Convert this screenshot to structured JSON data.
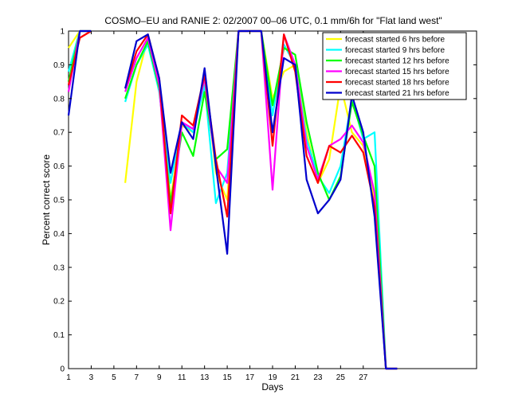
{
  "chart_data": {
    "type": "line",
    "title": "COSMO–EU and RANIE 2: 02/2007 00–06 UTC, 0.1 mm/6h for \"Flat land west\"",
    "xlabel": "Days",
    "ylabel": "Percent correct score",
    "xlim": [
      1,
      37
    ],
    "ylim": [
      0,
      1
    ],
    "xticks": [
      1,
      3,
      5,
      7,
      9,
      11,
      13,
      15,
      17,
      19,
      21,
      23,
      25,
      27
    ],
    "yticks": [
      0,
      0.1,
      0.2,
      0.3,
      0.4,
      0.5,
      0.6,
      0.7,
      0.8,
      0.9,
      1
    ],
    "grid": false,
    "legend_position": "top-right",
    "series": [
      {
        "name": "forecast started 6 hrs before",
        "color": "#ffff00",
        "points": [
          [
            1,
            0.95
          ],
          [
            2,
            1.0
          ],
          [
            3,
            1.0
          ],
          [
            6,
            0.55
          ],
          [
            7,
            0.85
          ],
          [
            8,
            0.98
          ],
          [
            9,
            0.85
          ],
          [
            10,
            0.5
          ],
          [
            11,
            0.72
          ],
          [
            12,
            0.7
          ],
          [
            13,
            0.88
          ],
          [
            14,
            0.58
          ],
          [
            15,
            0.5
          ],
          [
            16,
            1.0
          ],
          [
            17,
            1.0
          ],
          [
            18,
            1.0
          ],
          [
            19,
            0.8
          ],
          [
            20,
            0.88
          ],
          [
            21,
            0.9
          ],
          [
            22,
            0.7
          ],
          [
            23,
            0.55
          ],
          [
            24,
            0.62
          ],
          [
            25,
            0.84
          ],
          [
            26,
            0.7
          ],
          [
            27,
            0.66
          ],
          [
            28,
            0.5
          ],
          [
            29,
            0.0
          ],
          [
            30,
            0.0
          ]
        ]
      },
      {
        "name": "forecast started 9 hrs before",
        "color": "#00ffff",
        "points": [
          [
            1,
            0.88
          ],
          [
            2,
            1.0
          ],
          [
            3,
            1.0
          ],
          [
            6,
            0.79
          ],
          [
            7,
            0.9
          ],
          [
            8,
            0.96
          ],
          [
            9,
            0.82
          ],
          [
            10,
            0.55
          ],
          [
            11,
            0.73
          ],
          [
            12,
            0.7
          ],
          [
            13,
            0.84
          ],
          [
            14,
            0.49
          ],
          [
            15,
            0.58
          ],
          [
            16,
            1.0
          ],
          [
            17,
            1.0
          ],
          [
            18,
            1.0
          ],
          [
            19,
            0.75
          ],
          [
            20,
            0.96
          ],
          [
            21,
            0.9
          ],
          [
            22,
            0.68
          ],
          [
            23,
            0.57
          ],
          [
            24,
            0.52
          ],
          [
            25,
            0.6
          ],
          [
            26,
            0.8
          ],
          [
            27,
            0.68
          ],
          [
            28,
            0.7
          ],
          [
            29,
            0.0
          ],
          [
            30,
            0.0
          ]
        ]
      },
      {
        "name": "forecast started 12 hrs before",
        "color": "#00ff00",
        "points": [
          [
            1,
            0.85
          ],
          [
            2,
            1.0
          ],
          [
            3,
            1.0
          ],
          [
            6,
            0.8
          ],
          [
            7,
            0.9
          ],
          [
            8,
            0.97
          ],
          [
            9,
            0.83
          ],
          [
            10,
            0.49
          ],
          [
            11,
            0.7
          ],
          [
            12,
            0.63
          ],
          [
            13,
            0.82
          ],
          [
            14,
            0.62
          ],
          [
            15,
            0.65
          ],
          [
            16,
            1.0
          ],
          [
            17,
            1.0
          ],
          [
            18,
            1.0
          ],
          [
            19,
            0.78
          ],
          [
            20,
            0.95
          ],
          [
            21,
            0.93
          ],
          [
            22,
            0.73
          ],
          [
            23,
            0.58
          ],
          [
            24,
            0.5
          ],
          [
            25,
            0.57
          ],
          [
            26,
            0.79
          ],
          [
            27,
            0.69
          ],
          [
            28,
            0.6
          ],
          [
            29,
            0.0
          ],
          [
            30,
            0.0
          ]
        ]
      },
      {
        "name": "forecast started 15 hrs before",
        "color": "#ff00ff",
        "points": [
          [
            1,
            0.82
          ],
          [
            2,
            1.0
          ],
          [
            3,
            1.0
          ],
          [
            6,
            0.82
          ],
          [
            7,
            0.92
          ],
          [
            8,
            0.98
          ],
          [
            9,
            0.84
          ],
          [
            10,
            0.41
          ],
          [
            11,
            0.73
          ],
          [
            12,
            0.71
          ],
          [
            13,
            0.86
          ],
          [
            14,
            0.6
          ],
          [
            15,
            0.55
          ],
          [
            16,
            1.0
          ],
          [
            17,
            1.0
          ],
          [
            18,
            1.0
          ],
          [
            19,
            0.53
          ],
          [
            20,
            0.99
          ],
          [
            21,
            0.9
          ],
          [
            22,
            0.66
          ],
          [
            23,
            0.56
          ],
          [
            24,
            0.66
          ],
          [
            25,
            0.68
          ],
          [
            26,
            0.72
          ],
          [
            27,
            0.67
          ],
          [
            28,
            0.52
          ],
          [
            29,
            0.0
          ],
          [
            30,
            0.0
          ]
        ]
      },
      {
        "name": "forecast started 18 hrs before",
        "color": "#ff0000",
        "points": [
          [
            1,
            0.84
          ],
          [
            2,
            0.98
          ],
          [
            3,
            1.0
          ],
          [
            6,
            0.83
          ],
          [
            7,
            0.94
          ],
          [
            8,
            0.99
          ],
          [
            9,
            0.86
          ],
          [
            10,
            0.46
          ],
          [
            11,
            0.75
          ],
          [
            12,
            0.72
          ],
          [
            13,
            0.87
          ],
          [
            14,
            0.62
          ],
          [
            15,
            0.45
          ],
          [
            16,
            1.0
          ],
          [
            17,
            1.0
          ],
          [
            18,
            1.0
          ],
          [
            19,
            0.66
          ],
          [
            20,
            0.99
          ],
          [
            21,
            0.88
          ],
          [
            22,
            0.63
          ],
          [
            23,
            0.55
          ],
          [
            24,
            0.66
          ],
          [
            25,
            0.64
          ],
          [
            26,
            0.69
          ],
          [
            27,
            0.64
          ],
          [
            28,
            0.48
          ],
          [
            29,
            0.0
          ],
          [
            30,
            0.0
          ]
        ]
      },
      {
        "name": "forecast started 21 hrs before",
        "color": "#0000cc",
        "points": [
          [
            1,
            0.75
          ],
          [
            2,
            1.0
          ],
          [
            3,
            1.0
          ],
          [
            6,
            0.83
          ],
          [
            7,
            0.97
          ],
          [
            8,
            0.99
          ],
          [
            9,
            0.86
          ],
          [
            10,
            0.58
          ],
          [
            11,
            0.73
          ],
          [
            12,
            0.68
          ],
          [
            13,
            0.89
          ],
          [
            14,
            0.6
          ],
          [
            15,
            0.34
          ],
          [
            16,
            1.0
          ],
          [
            17,
            1.0
          ],
          [
            18,
            1.0
          ],
          [
            19,
            0.7
          ],
          [
            20,
            0.92
          ],
          [
            21,
            0.9
          ],
          [
            22,
            0.56
          ],
          [
            23,
            0.46
          ],
          [
            24,
            0.5
          ],
          [
            25,
            0.56
          ],
          [
            26,
            0.81
          ],
          [
            27,
            0.7
          ],
          [
            28,
            0.45
          ],
          [
            29,
            0.0
          ],
          [
            30,
            0.0
          ]
        ]
      }
    ]
  }
}
